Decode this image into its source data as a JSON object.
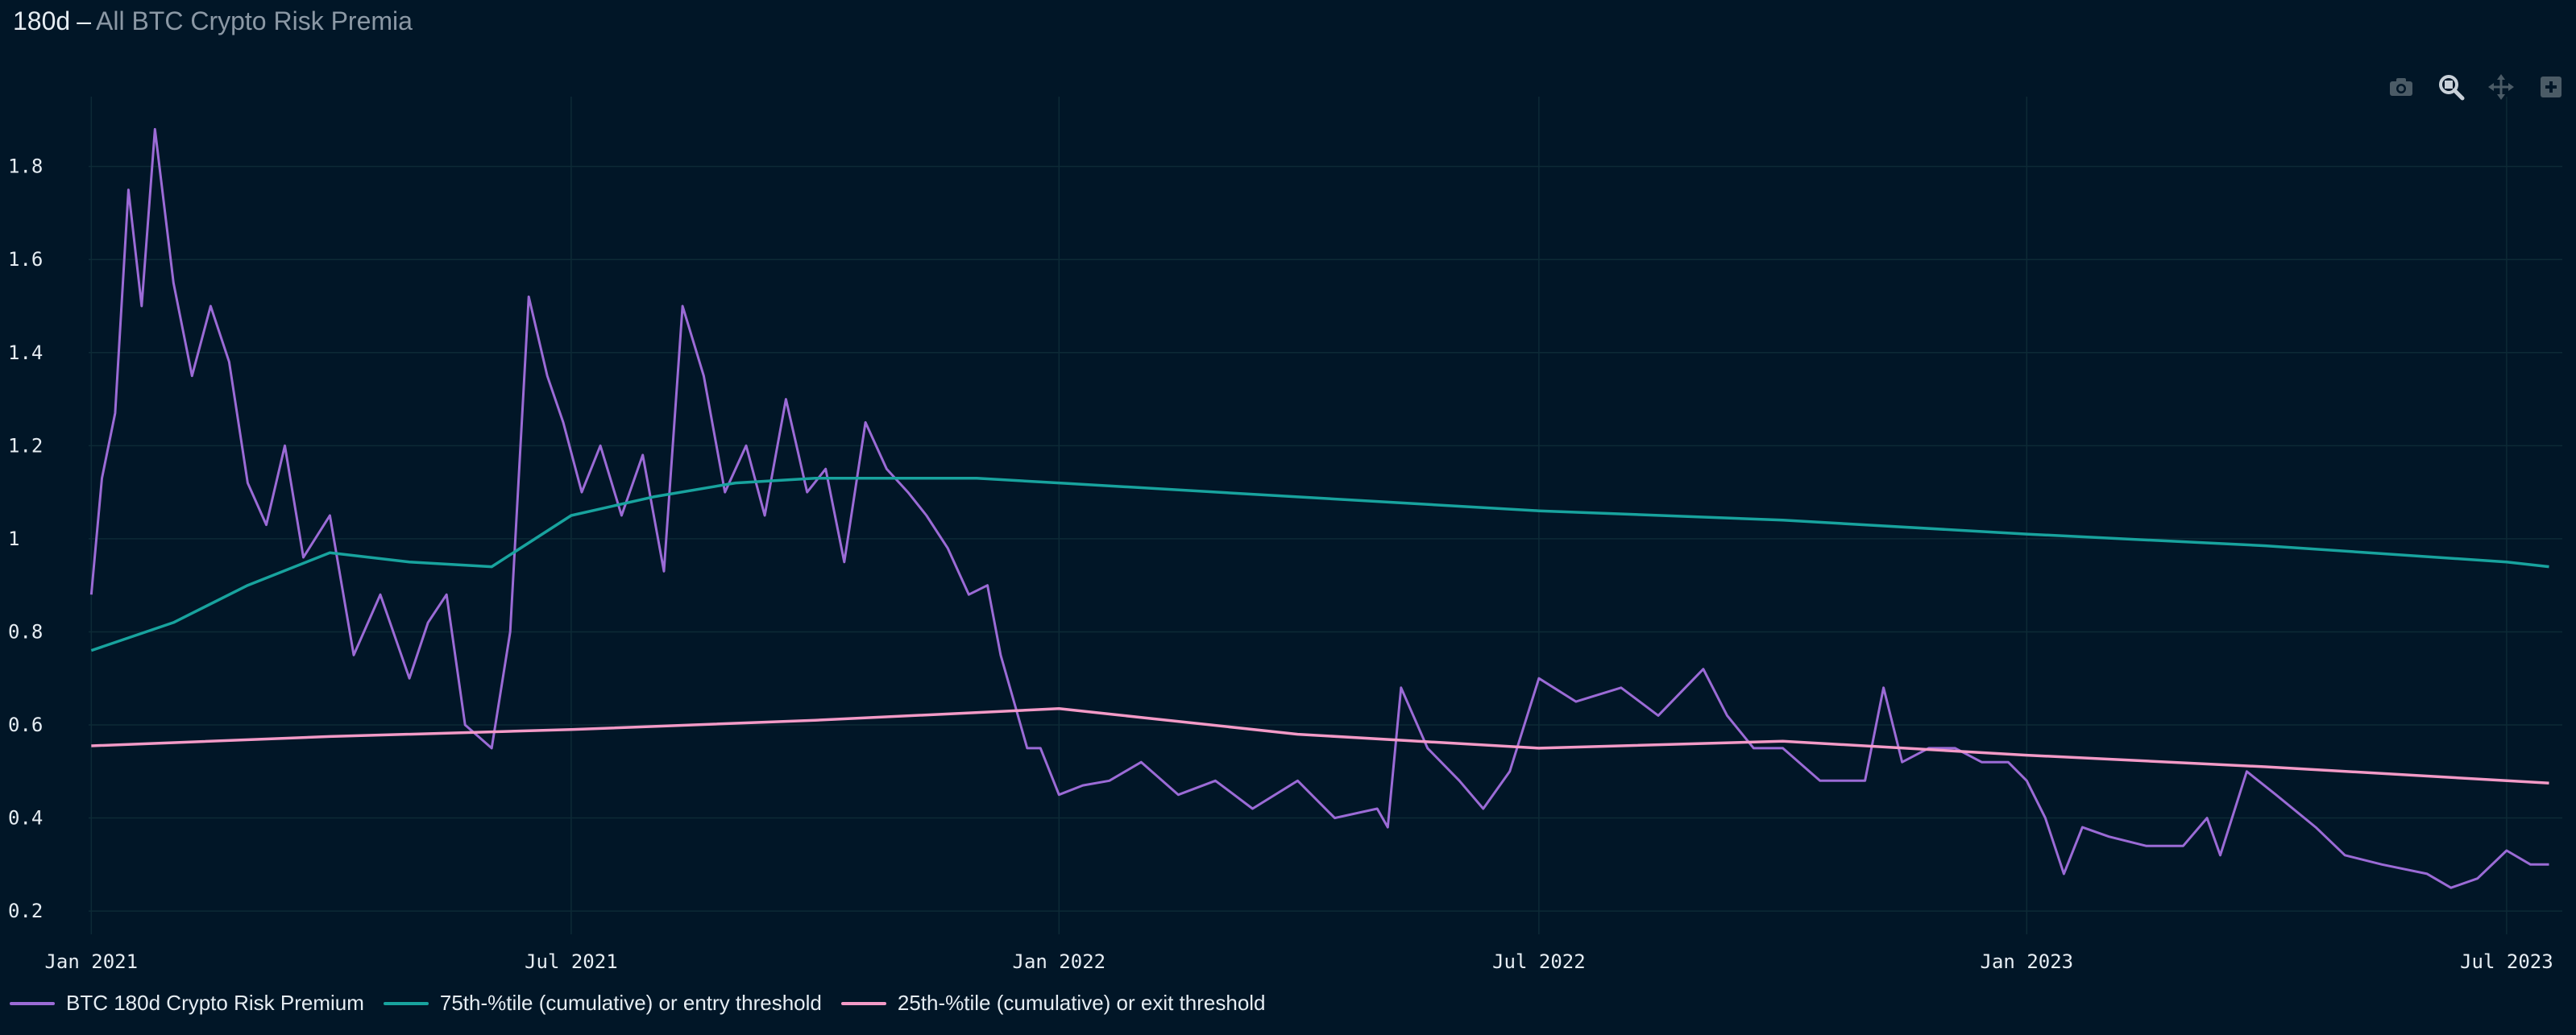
{
  "header": {
    "title": "180d",
    "separator": "–",
    "subtitle": "All BTC Crypto Risk Premia"
  },
  "toolbar": {
    "icons": [
      "camera-icon",
      "zoom-icon",
      "pan-icon",
      "add-icon"
    ]
  },
  "colors": {
    "background": "#011627",
    "grid": "#0d2a36",
    "premium": "#9b6bd6",
    "p75": "#18a39e",
    "p25": "#f39ac7"
  },
  "chart_data": {
    "type": "line",
    "title": "",
    "xlabel": "",
    "ylabel": "",
    "xlim": [
      "2020-12-31",
      "2023-07-22"
    ],
    "ylim": [
      0.15,
      1.95
    ],
    "grid": true,
    "legend_position": "bottom-left",
    "x_ticks": [
      "2021-01-01",
      "2021-07-01",
      "2022-01-01",
      "2022-07-01",
      "2023-01-01",
      "2023-07-01"
    ],
    "x_tick_labels": [
      "Jan 2021",
      "Jul 2021",
      "Jan 2022",
      "Jul 2022",
      "Jan 2023",
      "Jul 2023"
    ],
    "y_ticks": [
      0.2,
      0.4,
      0.6,
      0.8,
      1,
      1.2,
      1.4,
      1.6,
      1.8
    ],
    "y_tick_labels": [
      "0.2",
      "0.4",
      "0.6",
      "0.8",
      "1",
      "1.2",
      "1.4",
      "1.6",
      "1.8"
    ],
    "series": [
      {
        "name": "BTC 180d Crypto Risk Premium",
        "color": "#9b6bd6",
        "x": [
          "2021-01-01",
          "2021-01-05",
          "2021-01-10",
          "2021-01-15",
          "2021-01-20",
          "2021-01-25",
          "2021-02-01",
          "2021-02-08",
          "2021-02-15",
          "2021-02-22",
          "2021-03-01",
          "2021-03-08",
          "2021-03-15",
          "2021-03-22",
          "2021-04-01",
          "2021-04-10",
          "2021-04-20",
          "2021-05-01",
          "2021-05-08",
          "2021-05-15",
          "2021-05-22",
          "2021-06-01",
          "2021-06-08",
          "2021-06-15",
          "2021-06-22",
          "2021-06-28",
          "2021-07-05",
          "2021-07-12",
          "2021-07-20",
          "2021-07-28",
          "2021-08-05",
          "2021-08-12",
          "2021-08-20",
          "2021-08-28",
          "2021-09-05",
          "2021-09-12",
          "2021-09-20",
          "2021-09-28",
          "2021-10-05",
          "2021-10-12",
          "2021-10-20",
          "2021-10-28",
          "2021-11-05",
          "2021-11-12",
          "2021-11-20",
          "2021-11-28",
          "2021-12-05",
          "2021-12-10",
          "2021-12-15",
          "2021-12-20",
          "2021-12-25",
          "2022-01-01",
          "2022-01-10",
          "2022-01-20",
          "2022-02-01",
          "2022-02-15",
          "2022-03-01",
          "2022-03-15",
          "2022-04-01",
          "2022-04-15",
          "2022-05-01",
          "2022-05-05",
          "2022-05-10",
          "2022-05-20",
          "2022-06-01",
          "2022-06-10",
          "2022-06-20",
          "2022-07-01",
          "2022-07-15",
          "2022-08-01",
          "2022-08-15",
          "2022-09-01",
          "2022-09-10",
          "2022-09-20",
          "2022-10-01",
          "2022-10-15",
          "2022-11-01",
          "2022-11-08",
          "2022-11-15",
          "2022-11-25",
          "2022-12-05",
          "2022-12-15",
          "2022-12-25",
          "2023-01-01",
          "2023-01-08",
          "2023-01-15",
          "2023-01-22",
          "2023-02-01",
          "2023-02-15",
          "2023-03-01",
          "2023-03-10",
          "2023-03-15",
          "2023-03-25",
          "2023-04-05",
          "2023-04-20",
          "2023-05-01",
          "2023-05-15",
          "2023-06-01",
          "2023-06-10",
          "2023-06-20",
          "2023-07-01",
          "2023-07-10",
          "2023-07-17"
        ],
        "y": [
          0.88,
          1.13,
          1.27,
          1.75,
          1.5,
          1.88,
          1.55,
          1.35,
          1.5,
          1.38,
          1.12,
          1.03,
          1.2,
          0.96,
          1.05,
          0.75,
          0.88,
          0.7,
          0.82,
          0.88,
          0.6,
          0.55,
          0.8,
          1.52,
          1.35,
          1.25,
          1.1,
          1.2,
          1.05,
          1.18,
          0.93,
          1.5,
          1.35,
          1.1,
          1.2,
          1.05,
          1.3,
          1.1,
          1.15,
          0.95,
          1.25,
          1.15,
          1.1,
          1.05,
          0.98,
          0.88,
          0.9,
          0.75,
          0.65,
          0.55,
          0.55,
          0.45,
          0.47,
          0.48,
          0.52,
          0.45,
          0.48,
          0.42,
          0.48,
          0.4,
          0.42,
          0.38,
          0.68,
          0.55,
          0.48,
          0.42,
          0.5,
          0.7,
          0.65,
          0.68,
          0.62,
          0.72,
          0.62,
          0.55,
          0.55,
          0.48,
          0.48,
          0.68,
          0.52,
          0.55,
          0.55,
          0.52,
          0.52,
          0.48,
          0.4,
          0.28,
          0.38,
          0.36,
          0.34,
          0.34,
          0.4,
          0.32,
          0.5,
          0.45,
          0.38,
          0.32,
          0.3,
          0.28,
          0.25,
          0.27,
          0.33,
          0.3,
          0.3
        ]
      },
      {
        "name": "75th-%tile (cumulative) or entry threshold",
        "color": "#18a39e",
        "x": [
          "2021-01-01",
          "2021-02-01",
          "2021-03-01",
          "2021-04-01",
          "2021-05-01",
          "2021-06-01",
          "2021-07-01",
          "2021-08-01",
          "2021-09-01",
          "2021-10-01",
          "2021-11-01",
          "2021-12-01",
          "2022-01-01",
          "2022-04-01",
          "2022-07-01",
          "2022-10-01",
          "2023-01-01",
          "2023-04-01",
          "2023-07-01",
          "2023-07-17"
        ],
        "y": [
          0.76,
          0.82,
          0.9,
          0.97,
          0.95,
          0.94,
          1.05,
          1.09,
          1.12,
          1.13,
          1.13,
          1.13,
          1.12,
          1.09,
          1.06,
          1.04,
          1.01,
          0.985,
          0.95,
          0.94
        ]
      },
      {
        "name": "25th-%tile (cumulative) or exit threshold",
        "color": "#f39ac7",
        "x": [
          "2021-01-01",
          "2021-04-01",
          "2021-07-01",
          "2021-10-01",
          "2022-01-01",
          "2022-04-01",
          "2022-07-01",
          "2022-10-01",
          "2023-01-01",
          "2023-04-01",
          "2023-07-17"
        ],
        "y": [
          0.555,
          0.575,
          0.59,
          0.61,
          0.635,
          0.58,
          0.55,
          0.565,
          0.535,
          0.51,
          0.475
        ]
      }
    ]
  }
}
